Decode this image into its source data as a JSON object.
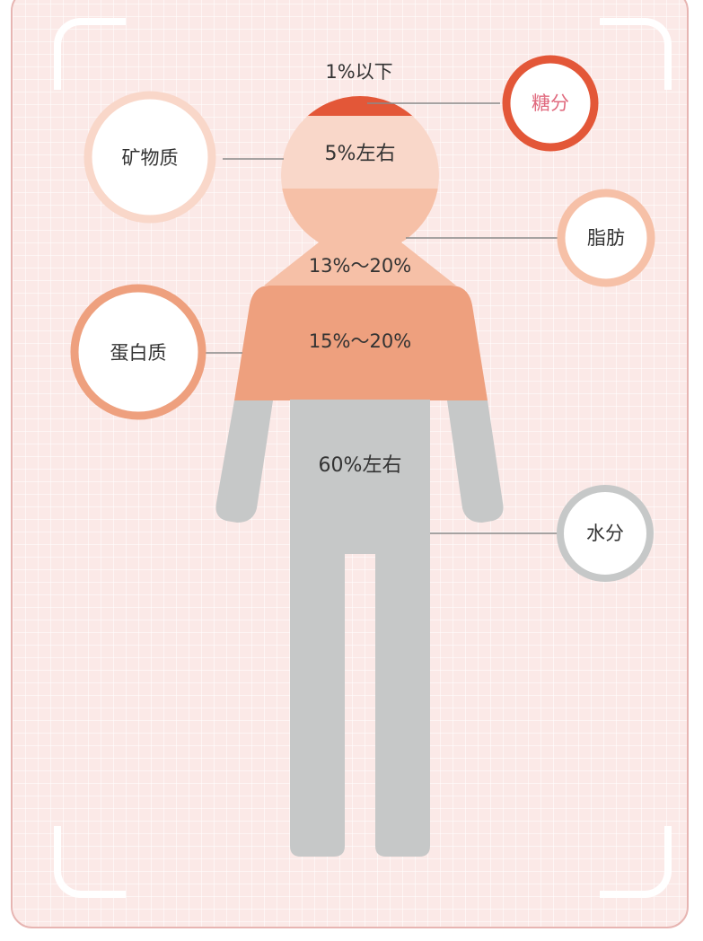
{
  "segments": {
    "sugar_pct": "1%以下",
    "minerals_pct": "5%左右",
    "fat_pct": "13%～20%",
    "protein_pct": "15%～20%",
    "water_pct": "60%左右"
  },
  "labels": {
    "sugar": "糖分",
    "minerals": "矿物质",
    "fat": "脂肪",
    "protein": "蛋白质",
    "water": "水分"
  },
  "colors": {
    "sugar": "#e35738",
    "minerals": "#f9d7c9",
    "fat": "#f6c0a7",
    "protein": "#eea07e",
    "water": "#c6c8c8",
    "background": "#fbe9e7"
  }
}
